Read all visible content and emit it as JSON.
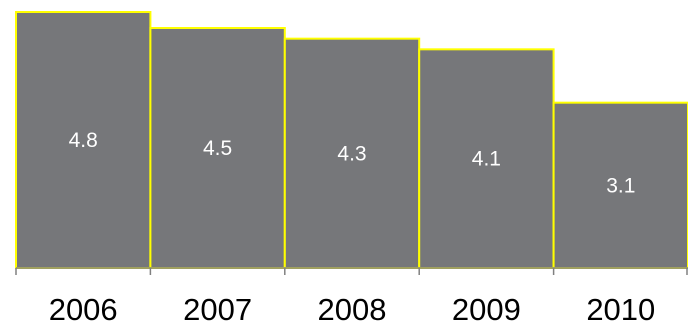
{
  "chart_data": {
    "type": "bar",
    "categories": [
      "2006",
      "2007",
      "2008",
      "2009",
      "2010"
    ],
    "values": [
      4.8,
      4.5,
      4.3,
      4.1,
      3.1
    ],
    "title": "",
    "xlabel": "",
    "ylabel": "",
    "ylim": [
      0,
      4.8
    ],
    "grid": false,
    "legend": "none",
    "data_labels": "inside-center",
    "bar_gap": "none"
  },
  "colors": {
    "bar_fill": "#76777a",
    "bar_outline": "#ffff00",
    "label_text": "#ffffff",
    "axis": "#808080"
  }
}
